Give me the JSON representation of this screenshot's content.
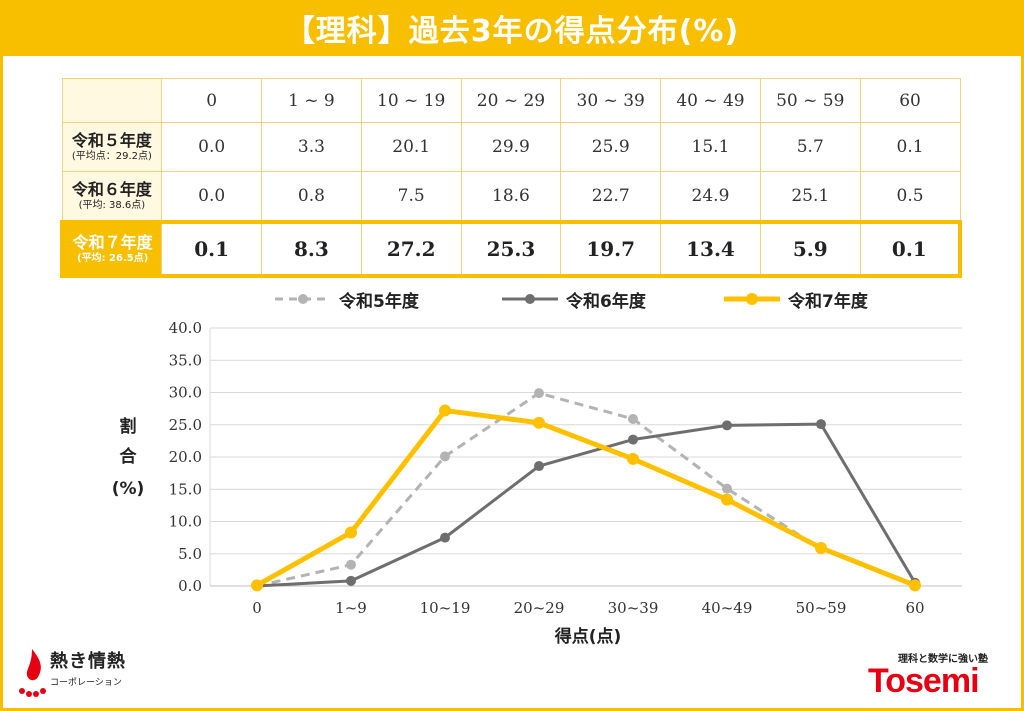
{
  "title": "【理科】過去3年の得点分布(%)",
  "table": {
    "headers": [
      "0",
      "1 ~ 9",
      "10 ~ 19",
      "20 ~ 29",
      "30 ~ 39",
      "40 ~ 49",
      "50 ~ 59",
      "60"
    ],
    "rows": [
      {
        "year": "令和５年度",
        "avg": "(平均点：29.2点)",
        "values": [
          "0.0",
          "3.3",
          "20.1",
          "29.9",
          "25.9",
          "15.1",
          "5.7",
          "0.1"
        ]
      },
      {
        "year": "令和６年度",
        "avg": "(平均: 38.6点)",
        "values": [
          "0.0",
          "0.8",
          "7.5",
          "18.6",
          "22.7",
          "24.9",
          "25.1",
          "0.5"
        ]
      },
      {
        "year": "令和７年度",
        "avg": "(平均: 26.5点)",
        "values": [
          "0.1",
          "8.3",
          "27.2",
          "25.3",
          "19.7",
          "13.4",
          "5.9",
          "0.1"
        ]
      }
    ]
  },
  "colors": {
    "accent": "#f7bf00",
    "r5": "#b3b3b3",
    "r6": "#6f6e6f",
    "r7": "#ffc000"
  },
  "chart_data": {
    "type": "line",
    "categories": [
      "0",
      "1~9",
      "10~19",
      "20~29",
      "30~39",
      "40~49",
      "50~59",
      "60"
    ],
    "series": [
      {
        "name": "令和5年度",
        "values": [
          0.0,
          3.3,
          20.1,
          29.9,
          25.9,
          15.1,
          5.7,
          0.1
        ],
        "style": "dashed",
        "color": "#b3b3b3"
      },
      {
        "name": "令和6年度",
        "values": [
          0.0,
          0.8,
          7.5,
          18.6,
          22.7,
          24.9,
          25.1,
          0.5
        ],
        "style": "solid",
        "color": "#6f6e6f"
      },
      {
        "name": "令和7年度",
        "values": [
          0.1,
          8.3,
          27.2,
          25.3,
          19.7,
          13.4,
          5.9,
          0.1
        ],
        "style": "solid-bold",
        "color": "#ffc000"
      }
    ],
    "xlabel": "得点(点)",
    "ylabel": [
      "割",
      "合",
      "(%)"
    ],
    "ylim": [
      0,
      40
    ],
    "yticks": [
      "0.0",
      "5.0",
      "10.0",
      "15.0",
      "20.0",
      "25.0",
      "30.0",
      "35.0",
      "40.0"
    ],
    "grid": true,
    "legend": "top"
  },
  "logos": {
    "left_name": "熱き情熱",
    "left_sub": "コーポレーション",
    "right_tag": "理科と数学に強い塾",
    "right_brand": "Tosemi"
  }
}
